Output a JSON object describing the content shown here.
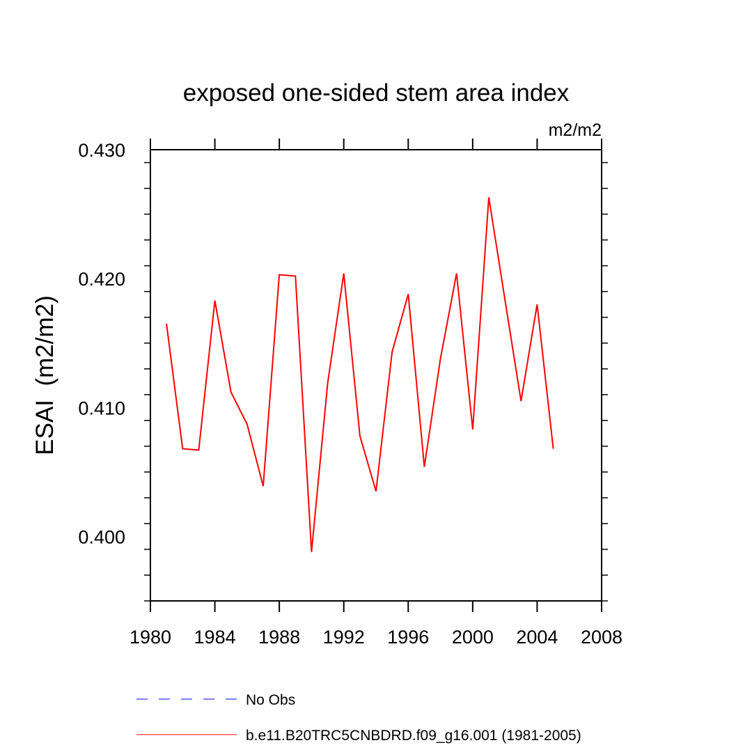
{
  "chart_data": {
    "type": "line",
    "title": "exposed one-sided stem area index",
    "units": "m2/m2",
    "ylabel": "ESAI  (m2/m2)",
    "xlabel": "",
    "xlim": [
      1980,
      2008
    ],
    "ylim": [
      0.395,
      0.43
    ],
    "x_ticks": [
      1980,
      1984,
      1988,
      1992,
      1996,
      2000,
      2004,
      2008
    ],
    "x_tick_labels": [
      "1980",
      "1984",
      "1988",
      "1992",
      "1996",
      "2000",
      "2004",
      "2008"
    ],
    "y_ticks": [
      0.4,
      0.41,
      0.42,
      0.43
    ],
    "y_tick_labels": [
      "0.400",
      "0.410",
      "0.420",
      "0.430"
    ],
    "grid": false,
    "series": [
      {
        "name": "b.e11.B20TRC5CNBDRD.f09_g16.001 (1981-2005)",
        "color": "#ff0000",
        "dash": "solid",
        "x": [
          1981,
          1982,
          1983,
          1984,
          1985,
          1986,
          1987,
          1988,
          1989,
          1990,
          1991,
          1992,
          1993,
          1994,
          1995,
          1996,
          1997,
          1998,
          1999,
          2000,
          2001,
          2002,
          2003,
          2004,
          2005
        ],
        "values": [
          0.4165,
          0.4068,
          0.4067,
          0.4183,
          0.4112,
          0.4087,
          0.4039,
          0.4203,
          0.4202,
          0.3988,
          0.4119,
          0.4204,
          0.4078,
          0.4035,
          0.4143,
          0.4188,
          0.4054,
          0.4138,
          0.4204,
          0.4083,
          0.4263,
          0.4184,
          0.4105,
          0.418,
          0.4068
        ]
      }
    ],
    "legend": [
      {
        "label": "No Obs",
        "color": "#0000ff",
        "dash": "dashed"
      },
      {
        "label": "b.e11.B20TRC5CNBDRD.f09_g16.001 (1981-2005)",
        "color": "#ff0000",
        "dash": "solid"
      }
    ],
    "legend_position": "bottom"
  }
}
